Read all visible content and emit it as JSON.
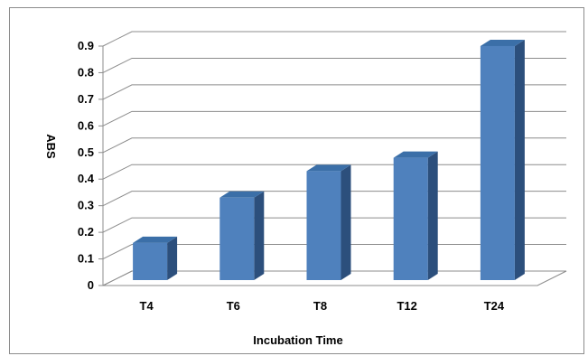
{
  "chart_data": {
    "type": "bar",
    "title": "",
    "xlabel": "Incubation Time",
    "ylabel": "ABS",
    "categories": [
      "T4",
      "T6",
      "T8",
      "T12",
      "T24"
    ],
    "values": [
      0.15,
      0.32,
      0.42,
      0.47,
      0.89
    ],
    "ylim": [
      0,
      0.9
    ],
    "yticks": [
      "0",
      "0.1",
      "0.2",
      "0.3",
      "0.4",
      "0.5",
      "0.6",
      "0.7",
      "0.8",
      "0.9"
    ],
    "grid": true,
    "legend": "none",
    "bar_color": "#4f81bd",
    "bar_top_color": "#3b6fa8",
    "bar_side_color": "#2c4f7c"
  }
}
